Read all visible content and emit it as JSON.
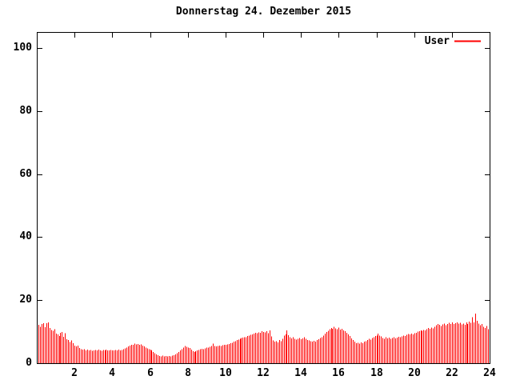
{
  "chart_data": {
    "type": "bar",
    "title": "Donnerstag 24. Dezember 2015",
    "legend": {
      "series_name": "User",
      "position": "top-right-inside"
    },
    "xlabel": "",
    "ylabel": "",
    "x_unit": "hour-of-day",
    "x_interval_minutes": 5,
    "xlim": [
      0,
      24
    ],
    "ylim": [
      0,
      100
    ],
    "grid": "off",
    "x_ticks": {
      "values": [
        2,
        4,
        6,
        8,
        10,
        12,
        14,
        16,
        18,
        20,
        22,
        24
      ],
      "labels": [
        "2",
        "4",
        "6",
        "8",
        "10",
        "12",
        "14",
        "16",
        "18",
        "20",
        "22",
        "24"
      ]
    },
    "y_ticks": {
      "values": [
        0,
        20,
        40,
        60,
        80,
        100
      ],
      "labels": [
        "0",
        "20",
        "40",
        "60",
        "80",
        "100"
      ]
    },
    "colors": {
      "bar": "#ff0000",
      "axis": "#000000",
      "background": "#ffffff",
      "text": "#000000"
    },
    "values": [
      12.2,
      11.6,
      12.5,
      12.7,
      11.4,
      12.7,
      12.9,
      11.2,
      10.5,
      10.3,
      10.8,
      9.4,
      9.2,
      8.6,
      9.7,
      9.9,
      8.4,
      9.5,
      7.6,
      7.3,
      6.7,
      7.2,
      6.4,
      5.6,
      5.3,
      5.6,
      4.8,
      4.5,
      4.3,
      4.4,
      4.1,
      4.3,
      4.0,
      4.2,
      3.9,
      4.1,
      4.2,
      4.0,
      4.3,
      4.1,
      3.9,
      4.2,
      4.0,
      4.3,
      4.1,
      4.0,
      4.2,
      4.1,
      4.0,
      4.2,
      4.1,
      4.3,
      4.0,
      4.2,
      4.4,
      4.7,
      5.0,
      5.3,
      5.6,
      5.8,
      5.9,
      6.2,
      6.0,
      6.1,
      5.8,
      6.0,
      5.6,
      5.3,
      5.0,
      4.7,
      4.4,
      4.3,
      4.0,
      3.6,
      3.2,
      2.8,
      2.5,
      2.3,
      2.2,
      2.4,
      2.2,
      2.3,
      2.1,
      2.3,
      2.2,
      2.4,
      2.5,
      2.8,
      3.2,
      3.6,
      4.1,
      4.5,
      5.0,
      5.5,
      5.2,
      4.9,
      4.8,
      4.3,
      3.8,
      3.6,
      3.8,
      4.0,
      4.2,
      4.4,
      4.6,
      4.5,
      4.7,
      4.9,
      5.0,
      5.2,
      5.4,
      6.2,
      5.4,
      5.3,
      5.5,
      5.6,
      5.5,
      5.7,
      5.8,
      5.9,
      6.0,
      6.1,
      6.3,
      6.5,
      6.8,
      7.0,
      7.3,
      7.5,
      7.8,
      8.0,
      8.1,
      8.2,
      8.3,
      8.6,
      8.8,
      9.0,
      9.2,
      9.4,
      9.6,
      9.5,
      9.8,
      9.7,
      10.2,
      9.9,
      9.8,
      10.2,
      9.5,
      10.4,
      8.5,
      7.2,
      6.8,
      7.0,
      6.6,
      7.3,
      7.0,
      7.8,
      8.8,
      9.2,
      10.4,
      8.9,
      8.2,
      7.9,
      8.3,
      7.7,
      7.5,
      7.8,
      8.0,
      7.6,
      7.9,
      8.2,
      7.7,
      7.4,
      7.2,
      7.0,
      6.8,
      7.1,
      6.9,
      7.3,
      7.6,
      8.0,
      8.3,
      8.8,
      9.4,
      9.9,
      10.3,
      10.8,
      11.2,
      10.9,
      11.5,
      11.1,
      10.8,
      11.3,
      10.7,
      10.9,
      10.4,
      10.1,
      9.7,
      9.2,
      8.6,
      7.9,
      7.4,
      6.8,
      6.3,
      6.5,
      6.2,
      6.6,
      6.4,
      6.8,
      7.0,
      7.4,
      7.8,
      7.5,
      8.0,
      8.3,
      8.6,
      8.8,
      9.4,
      8.7,
      8.5,
      8.0,
      7.8,
      8.2,
      7.9,
      8.1,
      7.7,
      8.0,
      8.3,
      7.9,
      8.1,
      8.4,
      8.2,
      8.5,
      8.8,
      8.6,
      9.0,
      9.3,
      9.1,
      9.4,
      9.2,
      9.5,
      9.6,
      10.0,
      10.2,
      10.4,
      10.3,
      10.5,
      10.4,
      10.8,
      11.2,
      10.9,
      11.3,
      11.0,
      11.5,
      12.0,
      12.5,
      12.2,
      11.8,
      12.3,
      12.6,
      12.1,
      12.4,
      12.8,
      12.5,
      12.9,
      12.4,
      12.7,
      13.0,
      12.6,
      12.8,
      12.3,
      12.6,
      12.2,
      12.9,
      12.4,
      13.2,
      12.8,
      14.6,
      13.0,
      15.7,
      13.4,
      12.6,
      12.0,
      12.4,
      11.6,
      11.2,
      11.8,
      10.8,
      10.9
    ]
  }
}
